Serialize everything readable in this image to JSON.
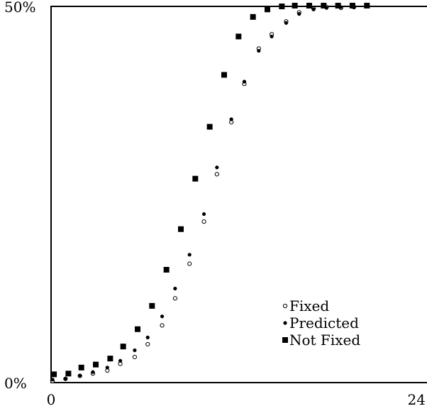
{
  "chart_data": {
    "type": "scatter",
    "x_ticks": [
      {
        "value": 0,
        "label": "0"
      },
      {
        "value": 24,
        "label": "24"
      }
    ],
    "y_ticks": [
      {
        "value": 0,
        "label": "0%"
      },
      {
        "value": 50,
        "label": "50%"
      }
    ],
    "xlim": [
      0,
      24
    ],
    "ylim": [
      0,
      50
    ],
    "grid": false,
    "legend_placement": "lower-right",
    "series": [
      {
        "name": "Fixed",
        "marker": "open-circle",
        "points": [
          [
            0.1,
            0.2
          ],
          [
            1.0,
            0.5
          ],
          [
            2.0,
            0.9
          ],
          [
            2.9,
            1.2
          ],
          [
            3.9,
            1.6
          ],
          [
            4.8,
            2.5
          ],
          [
            5.8,
            3.4
          ],
          [
            6.7,
            5.1
          ],
          [
            7.7,
            7.6
          ],
          [
            8.6,
            11.2
          ],
          [
            9.6,
            15.8
          ],
          [
            10.6,
            21.4
          ],
          [
            11.5,
            27.7
          ],
          [
            12.5,
            34.6
          ],
          [
            13.4,
            39.7
          ],
          [
            14.4,
            44.4
          ],
          [
            15.3,
            46.3
          ],
          [
            16.3,
            48.0
          ],
          [
            17.2,
            49.2
          ],
          [
            18.2,
            49.7
          ],
          [
            19.1,
            49.9
          ],
          [
            20.1,
            49.8
          ],
          [
            21.0,
            49.9
          ]
        ]
      },
      {
        "name": "Predicted",
        "marker": "filled-dot",
        "points": [
          [
            0.1,
            0.4
          ],
          [
            1.0,
            0.5
          ],
          [
            2.0,
            0.9
          ],
          [
            2.9,
            1.4
          ],
          [
            3.9,
            2.0
          ],
          [
            4.8,
            2.9
          ],
          [
            5.8,
            4.3
          ],
          [
            6.7,
            6.0
          ],
          [
            7.7,
            8.8
          ],
          [
            8.6,
            12.5
          ],
          [
            9.6,
            17.0
          ],
          [
            10.6,
            22.4
          ],
          [
            11.5,
            28.6
          ],
          [
            12.5,
            35.0
          ],
          [
            13.4,
            40.0
          ],
          [
            14.4,
            44.1
          ],
          [
            15.3,
            46.0
          ],
          [
            16.3,
            47.8
          ],
          [
            17.2,
            49.0
          ],
          [
            18.2,
            49.6
          ],
          [
            19.1,
            49.8
          ],
          [
            20.1,
            49.9
          ],
          [
            21.0,
            49.9
          ]
        ]
      },
      {
        "name": "Not Fixed",
        "marker": "filled-square",
        "points": [
          [
            0.2,
            1.1
          ],
          [
            1.2,
            1.2
          ],
          [
            2.1,
            2.0
          ],
          [
            3.1,
            2.4
          ],
          [
            4.1,
            3.2
          ],
          [
            5.0,
            4.8
          ],
          [
            6.0,
            7.1
          ],
          [
            7.0,
            10.2
          ],
          [
            8.0,
            15.0
          ],
          [
            9.0,
            20.4
          ],
          [
            10.0,
            27.1
          ],
          [
            11.0,
            34.0
          ],
          [
            12.0,
            40.9
          ],
          [
            13.0,
            46.0
          ],
          [
            14.0,
            48.6
          ],
          [
            15.0,
            49.6
          ],
          [
            16.0,
            50.0
          ],
          [
            16.9,
            50.1
          ],
          [
            17.9,
            50.1
          ],
          [
            18.9,
            50.1
          ],
          [
            19.9,
            50.1
          ],
          [
            20.9,
            50.1
          ],
          [
            21.9,
            50.1
          ]
        ]
      }
    ]
  }
}
